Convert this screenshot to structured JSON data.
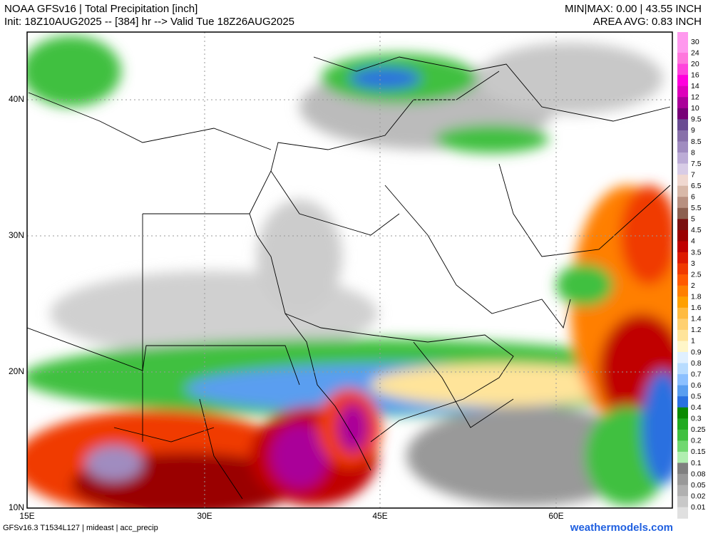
{
  "header": {
    "title": "NOAA GFSv16 | Total Precipitation [inch]",
    "subtitle": "Init: 18Z10AUG2025 -- [384] hr --> Valid Tue 18Z26AUG2025",
    "minmax": "MIN|MAX: 0.00 | 43.55 INCH",
    "area_avg": "AREA AVG: 0.83 INCH"
  },
  "map": {
    "lat_labels": [
      "40N",
      "30N",
      "20N",
      "10N"
    ],
    "lon_labels": [
      "15E",
      "30E",
      "45E",
      "60E"
    ]
  },
  "colorbar": [
    {
      "label": "30",
      "color": "#ff99ee"
    },
    {
      "label": "24",
      "color": "#ff77dd"
    },
    {
      "label": "20",
      "color": "#ff44dd"
    },
    {
      "label": "16",
      "color": "#ff00dd"
    },
    {
      "label": "14",
      "color": "#dd00bb"
    },
    {
      "label": "12",
      "color": "#aa0099"
    },
    {
      "label": "10",
      "color": "#770077"
    },
    {
      "label": "9.5",
      "color": "#6a4c93"
    },
    {
      "label": "9",
      "color": "#8870aa"
    },
    {
      "label": "8.5",
      "color": "#a08cc0"
    },
    {
      "label": "8",
      "color": "#bcacd6"
    },
    {
      "label": "7.5",
      "color": "#d8cce6"
    },
    {
      "label": "7",
      "color": "#f0d8d0"
    },
    {
      "label": "6.5",
      "color": "#d8b8a8"
    },
    {
      "label": "6",
      "color": "#b89080"
    },
    {
      "label": "5.5",
      "color": "#8c6050"
    },
    {
      "label": "5",
      "color": "#7a1010"
    },
    {
      "label": "4.5",
      "color": "#9a0000"
    },
    {
      "label": "4",
      "color": "#c00000"
    },
    {
      "label": "3.5",
      "color": "#dd1a00"
    },
    {
      "label": "3",
      "color": "#f03a00"
    },
    {
      "label": "2.5",
      "color": "#ff5a00"
    },
    {
      "label": "2",
      "color": "#ff7f00"
    },
    {
      "label": "1.8",
      "color": "#ffa000"
    },
    {
      "label": "1.6",
      "color": "#ffbb40"
    },
    {
      "label": "1.4",
      "color": "#ffd070"
    },
    {
      "label": "1.2",
      "color": "#ffe49a"
    },
    {
      "label": "1",
      "color": "#fff6c8"
    },
    {
      "label": "0.9",
      "color": "#e0f0ff"
    },
    {
      "label": "0.8",
      "color": "#b8dcff"
    },
    {
      "label": "0.7",
      "color": "#8cc0ff"
    },
    {
      "label": "0.6",
      "color": "#5a9ef0"
    },
    {
      "label": "0.5",
      "color": "#2a70e0"
    },
    {
      "label": "0.4",
      "color": "#0a8a00"
    },
    {
      "label": "0.3",
      "color": "#20aa20"
    },
    {
      "label": "0.25",
      "color": "#40c040"
    },
    {
      "label": "0.2",
      "color": "#70d870"
    },
    {
      "label": "0.15",
      "color": "#b0eeb0"
    },
    {
      "label": "0.1",
      "color": "#808080"
    },
    {
      "label": "0.08",
      "color": "#999999"
    },
    {
      "label": "0.05",
      "color": "#b0b0b0"
    },
    {
      "label": "0.02",
      "color": "#c8c8c8"
    },
    {
      "label": "0.01",
      "color": "#e0e0e0"
    }
  ],
  "footer": {
    "model": "GFSv16.3 T1534L127 | mideast | acc_precip",
    "site": "weathermodels.com"
  }
}
